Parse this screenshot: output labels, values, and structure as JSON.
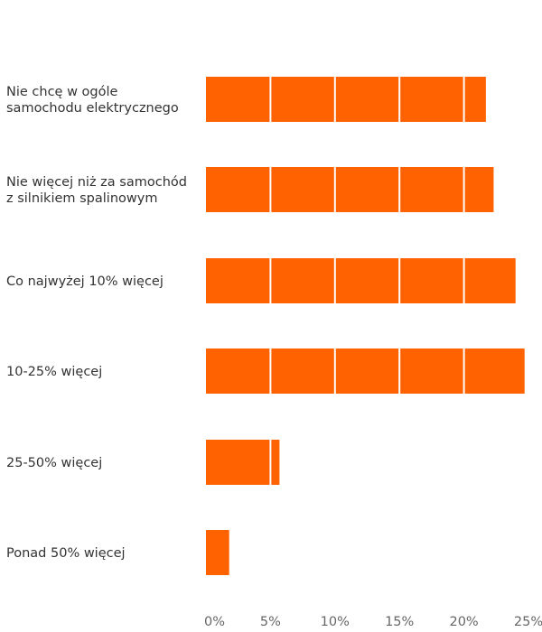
{
  "chart_data": {
    "type": "bar",
    "orientation": "horizontal",
    "categories": [
      [
        "Nie chcę w ogóle",
        "samochodu elektrycznego"
      ],
      [
        "Nie więcej niż za samochód",
        "z silnikiem spalinowym"
      ],
      [
        "Co najwyżej 10% więcej"
      ],
      [
        "10-25% więcej"
      ],
      [
        "25-50% więcej"
      ],
      [
        "Ponad 50% więcej"
      ]
    ],
    "values": [
      21.7,
      22.3,
      24.0,
      24.7,
      5.7,
      1.8
    ],
    "xlim": [
      0,
      25
    ],
    "xticks": [
      "0%",
      "5%",
      "10%",
      "15%",
      "20%",
      "25%"
    ],
    "grid": "vertical gridlines drawn over bars",
    "colors": {
      "bar": "#FF6200",
      "grid": "#ffffff",
      "label": "#333333",
      "tick": "#666666"
    }
  }
}
